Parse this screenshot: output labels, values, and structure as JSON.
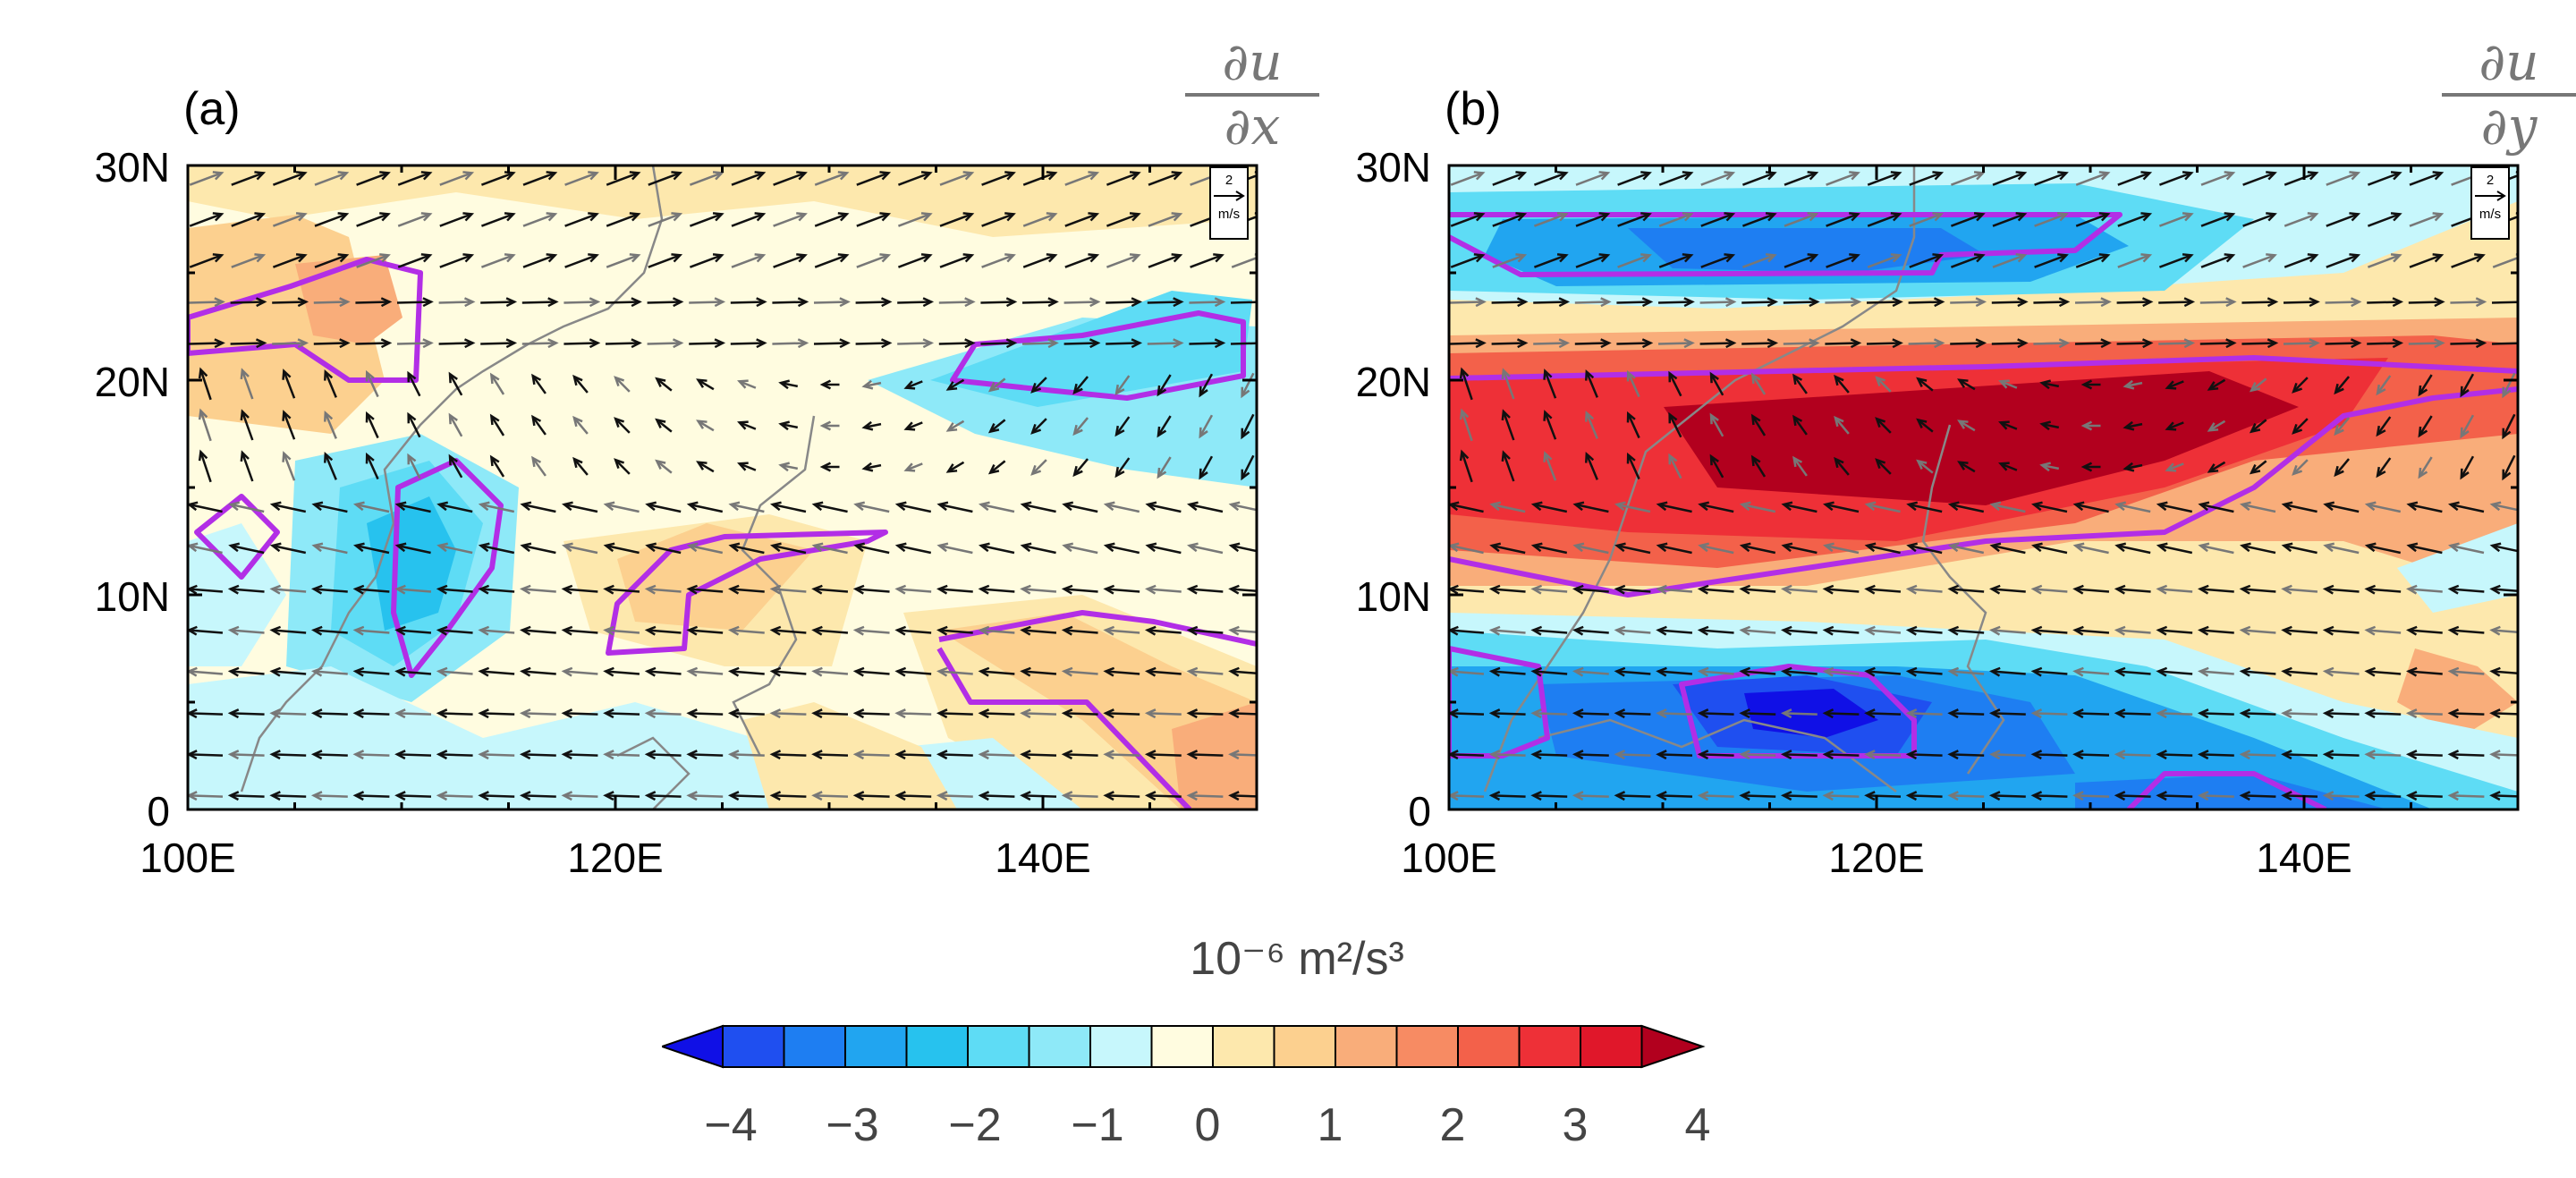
{
  "panels": [
    {
      "label": "(a)",
      "math_num": "∂u",
      "math_den": "∂x"
    },
    {
      "label": "(b)",
      "math_num": "∂u",
      "math_den": "∂y"
    }
  ],
  "axes": {
    "y_ticks": [
      "30N",
      "20N",
      "10N",
      "0"
    ],
    "x_ticks": [
      "100E",
      "120E",
      "140E"
    ],
    "lon_range": [
      100,
      150
    ],
    "lat_range": [
      0,
      30
    ]
  },
  "reference_vector": {
    "value": "2",
    "unit": "m/s"
  },
  "colorbar": {
    "units": "10⁻⁶ m²/s³",
    "tick_labels": [
      "−4",
      "−3",
      "−2",
      "−1",
      "0",
      "1",
      "2",
      "3",
      "4"
    ],
    "colors": [
      "#1010e6",
      "#1f4ff0",
      "#1e7ef2",
      "#21a5f0",
      "#27c2ee",
      "#5edcf5",
      "#8ee9f8",
      "#c7f7fc",
      "#fffce0",
      "#fde8ad",
      "#fcd08f",
      "#f9ad7a",
      "#f78b63",
      "#f3614a",
      "#ee3037",
      "#e0172a",
      "#b2001e"
    ]
  },
  "contour_color": "#b22ee6"
}
